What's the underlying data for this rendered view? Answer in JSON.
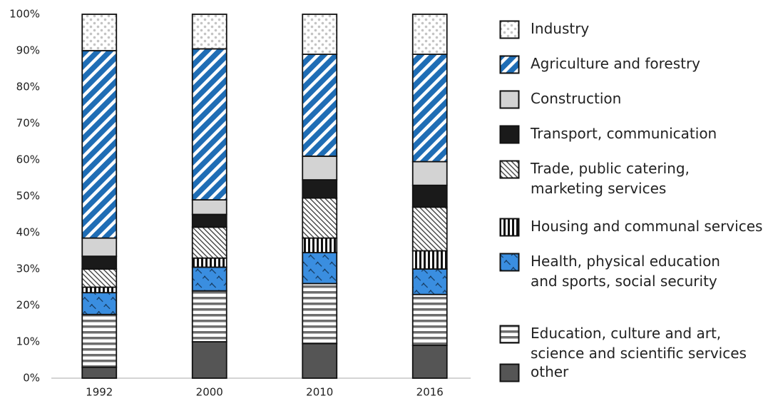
{
  "chart_data": {
    "type": "stacked-bar",
    "categories": [
      "1992",
      "2000",
      "2010",
      "2016"
    ],
    "series": [
      {
        "name": "other",
        "color": "#555555",
        "pattern": "solid",
        "values": [
          3,
          10,
          9.5,
          9
        ]
      },
      {
        "name": "Education, culture and art,\nscience and scientific services",
        "color": "#6e6e6e",
        "pattern": "horizontal-stripes",
        "values": [
          14.5,
          14,
          16.5,
          14
        ]
      },
      {
        "name": "Health, physical education\nand sports, social security",
        "color": "#3a8ee0",
        "pattern": "crosshatch",
        "values": [
          6,
          6.5,
          8.5,
          7
        ]
      },
      {
        "name": "Housing and communal services",
        "color": "#111111",
        "pattern": "vertical-stripes",
        "values": [
          1.5,
          2.5,
          4,
          5
        ]
      },
      {
        "name": "Trade, public catering,\nmarketing services",
        "color": "#444444",
        "pattern": "diagonal-lines",
        "values": [
          5,
          8.5,
          11,
          12
        ]
      },
      {
        "name": "Transport, communication",
        "color": "#1a1a1a",
        "pattern": "solid",
        "values": [
          3.5,
          3.5,
          5,
          6
        ]
      },
      {
        "name": "Construction",
        "color": "#d3d3d3",
        "pattern": "solid",
        "values": [
          5,
          4,
          6.5,
          6.5
        ]
      },
      {
        "name": "Agriculture and forestry",
        "color": "#1f6db5",
        "pattern": "diagonal-stripes",
        "values": [
          51.5,
          41.5,
          28,
          29.5
        ]
      },
      {
        "name": "Industry",
        "color": "#c4c4c4",
        "pattern": "dots",
        "values": [
          10,
          9.5,
          11,
          11
        ]
      }
    ],
    "ylim": [
      0,
      100
    ],
    "yticks": [
      {
        "value": 0,
        "label": "0%"
      },
      {
        "value": 10,
        "label": "10%"
      },
      {
        "value": 20,
        "label": "20%"
      },
      {
        "value": 30,
        "label": "30%"
      },
      {
        "value": 40,
        "label": "40%"
      },
      {
        "value": 50,
        "label": "50%"
      },
      {
        "value": 60,
        "label": "60%"
      },
      {
        "value": 70,
        "label": "70%"
      },
      {
        "value": 80,
        "label": "80%"
      },
      {
        "value": 90,
        "label": "90%"
      },
      {
        "value": 100,
        "label": "100%"
      }
    ],
    "grid": false
  }
}
